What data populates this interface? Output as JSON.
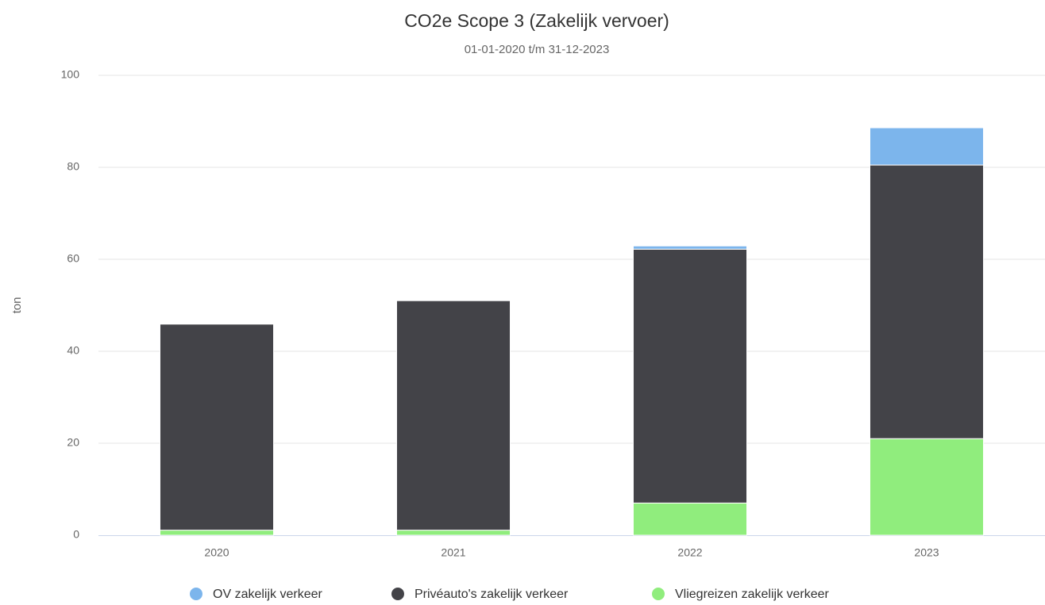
{
  "chart_data": {
    "type": "bar",
    "stacked": true,
    "title": "CO2e Scope 3 (Zakelijk vervoer)",
    "subtitle": "01-01-2020 t/m 31-12-2023",
    "y_label": "ton",
    "categories": [
      "2020",
      "2021",
      "2022",
      "2023"
    ],
    "series": [
      {
        "name": "OV zakelijk verkeer",
        "color": "#7cb5ec",
        "values": [
          0,
          0,
          0.7,
          8.1
        ]
      },
      {
        "name": "Privéauto's zakelijk verkeer",
        "color": "#434348",
        "values": [
          44.8,
          49.9,
          55.2,
          59.5
        ]
      },
      {
        "name": "Vliegreizen zakelijk verkeer",
        "color": "#90ed7d",
        "values": [
          1.1,
          1.1,
          7.0,
          21.0
        ]
      }
    ],
    "ylim": [
      0,
      100
    ],
    "yticks": [
      0,
      20,
      40,
      60,
      80,
      100
    ],
    "grid": true
  }
}
